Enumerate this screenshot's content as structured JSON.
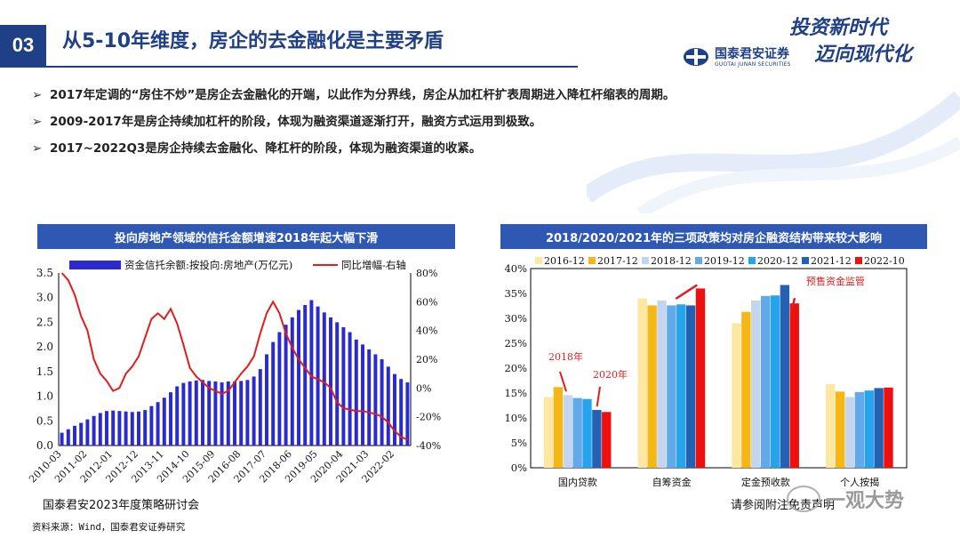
{
  "header": {
    "section_number": "03",
    "title": "从5-10年维度，房企的去金融化是主要矛盾",
    "logo_cn": "国泰君安证券",
    "logo_en": "GUOTAI JUNAN SECURITIES",
    "slogan_line1": "投资新时代",
    "slogan_line2": "迈向现代化"
  },
  "bullets": [
    "2017年定调的“房住不炒”是房企去金融化的开端，以此作为分界线，房企从加杠杆扩表周期进入降杠杆缩表的周期。",
    "2009-2017年是房企持续加杠杆的阶段，体现为融资渠道逐渐打开，融资方式运用到极致。",
    "2017~2022Q3是房企持续去金融化、降杠杆的阶段，体现为融资渠道的收紧。"
  ],
  "bullet_marker": "➢",
  "footer": {
    "meeting": "国泰君安2023年度策略研讨会",
    "source": "资料来源：Wind，国泰君安证券研究",
    "disclaimer": "请参阅附注免责声明",
    "watermark": "一观大势"
  },
  "chart_data": [
    {
      "type": "bar",
      "title": "投向房地产领域的信托金额增速2018年起大幅下滑",
      "x": [
        "2010-03",
        "2010-06",
        "2010-09",
        "2010-12",
        "2011-02",
        "2011-05",
        "2011-08",
        "2011-11",
        "2012-01",
        "2012-04",
        "2012-07",
        "2012-10",
        "2012-12",
        "2013-03",
        "2013-06",
        "2013-09",
        "2013-11",
        "2014-02",
        "2014-05",
        "2014-08",
        "2014-10",
        "2015-01",
        "2015-04",
        "2015-07",
        "2015-09",
        "2015-12",
        "2016-03",
        "2016-06",
        "2016-08",
        "2016-11",
        "2017-02",
        "2017-05",
        "2017-07",
        "2017-10",
        "2018-01",
        "2018-04",
        "2018-06",
        "2018-09",
        "2018-12",
        "2019-03",
        "2019-05",
        "2019-08",
        "2019-11",
        "2020-02",
        "2020-04",
        "2020-07",
        "2020-10",
        "2021-01",
        "2021-03",
        "2021-06",
        "2021-09",
        "2021-12",
        "2022-02",
        "2022-05",
        "2022-08"
      ],
      "x_tick_labels": [
        "2010-03",
        "2011-02",
        "2012-01",
        "2012-12",
        "2013-11",
        "2014-10",
        "2015-09",
        "2016-08",
        "2017-07",
        "2018-06",
        "2019-05",
        "2020-04",
        "2021-03",
        "2022-02"
      ],
      "series": [
        {
          "name": "资金信托余额:按投向:房地产(万亿元)",
          "type": "bar",
          "axis": "left",
          "color": "#2a2ad0",
          "values": [
            0.26,
            0.33,
            0.4,
            0.46,
            0.53,
            0.6,
            0.66,
            0.7,
            0.71,
            0.7,
            0.69,
            0.68,
            0.69,
            0.72,
            0.8,
            0.88,
            0.97,
            1.08,
            1.2,
            1.27,
            1.3,
            1.32,
            1.33,
            1.31,
            1.3,
            1.28,
            1.3,
            1.3,
            1.31,
            1.33,
            1.4,
            1.55,
            1.85,
            2.1,
            2.3,
            2.45,
            2.6,
            2.75,
            2.85,
            2.95,
            2.82,
            2.7,
            2.6,
            2.5,
            2.4,
            2.3,
            2.15,
            2.05,
            1.95,
            1.85,
            1.75,
            1.6,
            1.45,
            1.35,
            1.28
          ]
        },
        {
          "name": "同比增幅-右轴",
          "type": "line",
          "axis": "right",
          "color": "#e11d1d",
          "values": [
            82,
            75,
            65,
            50,
            40,
            20,
            10,
            5,
            -2,
            0,
            10,
            15,
            22,
            35,
            48,
            52,
            48,
            55,
            45,
            30,
            14,
            8,
            4,
            0,
            -2,
            -4,
            -2,
            4,
            10,
            15,
            22,
            38,
            52,
            60,
            52,
            38,
            28,
            20,
            14,
            8,
            6,
            4,
            0,
            -10,
            -14,
            -15,
            -16,
            -16,
            -17,
            -18,
            -20,
            -24,
            -30,
            -34,
            -36
          ]
        }
      ],
      "ylim_left": [
        0,
        3.5
      ],
      "yticks_left": [
        "0.0",
        "0.5",
        "1.0",
        "1.5",
        "2.0",
        "2.5",
        "3.0",
        "3.5"
      ],
      "ylim_right": [
        -40,
        80
      ],
      "yticks_right": [
        "-40%",
        "-20%",
        "0%",
        "20%",
        "40%",
        "60%",
        "80%"
      ],
      "legend_placement": "top"
    },
    {
      "type": "bar",
      "title": "2018/2020/2021年的三项政策均对房企融资结构带来较大影响",
      "categories": [
        "国内贷款",
        "自筹资金",
        "定金预收款",
        "个人按揭"
      ],
      "series": [
        {
          "name": "2016-12",
          "color": "#fde7a1",
          "values": [
            14.2,
            34.0,
            29.0,
            16.8
          ]
        },
        {
          "name": "2017-12",
          "color": "#f5b716",
          "values": [
            16.2,
            32.6,
            31.3,
            15.3
          ]
        },
        {
          "name": "2018-12",
          "color": "#c4d6ee",
          "values": [
            14.6,
            33.6,
            33.6,
            14.2
          ]
        },
        {
          "name": "2019-12",
          "color": "#62a9e9",
          "values": [
            14.0,
            32.6,
            34.5,
            15.2
          ]
        },
        {
          "name": "2020-12",
          "color": "#25a3ed",
          "values": [
            13.8,
            32.8,
            34.6,
            15.5
          ]
        },
        {
          "name": "2021-12",
          "color": "#2461b3",
          "values": [
            11.6,
            32.6,
            36.7,
            16.0
          ]
        },
        {
          "name": "2022-10",
          "color": "#ef0f0f",
          "values": [
            11.2,
            36.0,
            33.0,
            16.1
          ]
        }
      ],
      "ylim": [
        0,
        40
      ],
      "yticks": [
        "0%",
        "5%",
        "10%",
        "15%",
        "20%",
        "25%",
        "30%",
        "35%",
        "40%"
      ],
      "annotations": [
        "2018年",
        "2020年",
        "预售资金监管"
      ],
      "legend_placement": "top"
    }
  ]
}
